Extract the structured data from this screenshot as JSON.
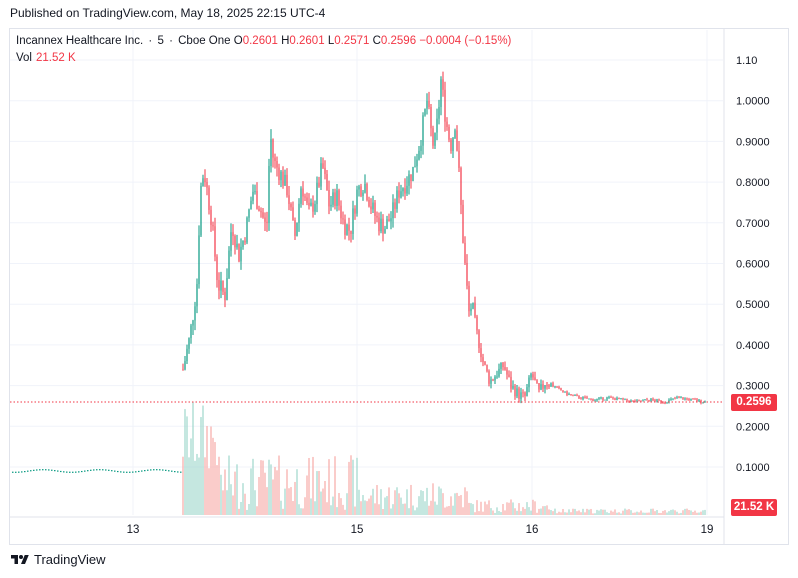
{
  "published": "Published on TradingView.com, May 18, 2025 22:15 UTC-4",
  "legend": {
    "symbol": "Incannex Healthcare Inc.",
    "interval": "5",
    "exchange": "Cboe One",
    "o_label": "O",
    "o": "0.2601",
    "h_label": "H",
    "h": "0.2601",
    "l_label": "L",
    "l": "0.2571",
    "c_label": "C",
    "c": "0.2596",
    "change": "−0.0004 (−0.15%)"
  },
  "volume_legend": {
    "label": "Vol",
    "value": "21.52 K"
  },
  "last_price_tag": "0.2596",
  "last_volume_tag": "21.52 K",
  "footer": {
    "brand": "TradingView"
  },
  "colors": {
    "up": "#089981",
    "down": "#f23645",
    "grid": "#f0f3fa",
    "text": "#131722"
  },
  "chart_data": {
    "type": "candlestick",
    "y_ticks": [
      "1.10",
      "1.0000",
      "0.9000",
      "0.8000",
      "0.7000",
      "0.6000",
      "0.5000",
      "0.4000",
      "0.3000",
      "0.2000",
      "0.1000"
    ],
    "y_tick_values": [
      1.1,
      1.0,
      0.9,
      0.8,
      0.7,
      0.6,
      0.5,
      0.4,
      0.3,
      0.2,
      0.1
    ],
    "x_ticks": [
      "13",
      "15",
      "16",
      "19"
    ],
    "x_tick_values": [
      0.18,
      0.5,
      0.76,
      1.0
    ],
    "ylim": [
      0.0,
      1.12
    ],
    "last_price": 0.2596,
    "volume_last": "21.52 K",
    "close_path": [
      [
        0.25,
        0.34
      ],
      [
        0.26,
        0.42
      ],
      [
        0.27,
        0.55
      ],
      [
        0.275,
        0.78
      ],
      [
        0.28,
        0.83
      ],
      [
        0.29,
        0.72
      ],
      [
        0.3,
        0.55
      ],
      [
        0.31,
        0.52
      ],
      [
        0.32,
        0.7
      ],
      [
        0.33,
        0.62
      ],
      [
        0.34,
        0.68
      ],
      [
        0.35,
        0.78
      ],
      [
        0.36,
        0.74
      ],
      [
        0.37,
        0.68
      ],
      [
        0.375,
        0.92
      ],
      [
        0.38,
        0.85
      ],
      [
        0.39,
        0.82
      ],
      [
        0.4,
        0.78
      ],
      [
        0.41,
        0.66
      ],
      [
        0.42,
        0.8
      ],
      [
        0.43,
        0.72
      ],
      [
        0.44,
        0.76
      ],
      [
        0.45,
        0.84
      ],
      [
        0.46,
        0.74
      ],
      [
        0.47,
        0.77
      ],
      [
        0.48,
        0.7
      ],
      [
        0.49,
        0.68
      ],
      [
        0.5,
        0.78
      ],
      [
        0.51,
        0.8
      ],
      [
        0.52,
        0.74
      ],
      [
        0.53,
        0.7
      ],
      [
        0.54,
        0.69
      ],
      [
        0.55,
        0.72
      ],
      [
        0.56,
        0.78
      ],
      [
        0.57,
        0.8
      ],
      [
        0.58,
        0.83
      ],
      [
        0.59,
        0.9
      ],
      [
        0.6,
        1.0
      ],
      [
        0.605,
        0.93
      ],
      [
        0.61,
        0.88
      ],
      [
        0.615,
        0.95
      ],
      [
        0.62,
        1.05
      ],
      [
        0.625,
        0.98
      ],
      [
        0.63,
        0.92
      ],
      [
        0.635,
        0.89
      ],
      [
        0.64,
        0.95
      ],
      [
        0.645,
        0.84
      ],
      [
        0.65,
        0.7
      ],
      [
        0.655,
        0.58
      ],
      [
        0.66,
        0.48
      ],
      [
        0.665,
        0.5
      ],
      [
        0.67,
        0.44
      ],
      [
        0.68,
        0.36
      ],
      [
        0.69,
        0.31
      ],
      [
        0.7,
        0.33
      ],
      [
        0.71,
        0.35
      ],
      [
        0.72,
        0.3
      ],
      [
        0.73,
        0.28
      ],
      [
        0.74,
        0.27
      ],
      [
        0.75,
        0.33
      ],
      [
        0.76,
        0.28
      ],
      [
        0.77,
        0.31
      ],
      [
        0.78,
        0.3
      ],
      [
        0.8,
        0.28
      ],
      [
        0.82,
        0.27
      ],
      [
        0.84,
        0.265
      ],
      [
        0.86,
        0.27
      ],
      [
        0.88,
        0.265
      ],
      [
        0.9,
        0.26
      ],
      [
        0.92,
        0.265
      ],
      [
        0.94,
        0.26
      ],
      [
        0.96,
        0.27
      ],
      [
        0.98,
        0.265
      ],
      [
        1.0,
        0.2596
      ]
    ]
  }
}
